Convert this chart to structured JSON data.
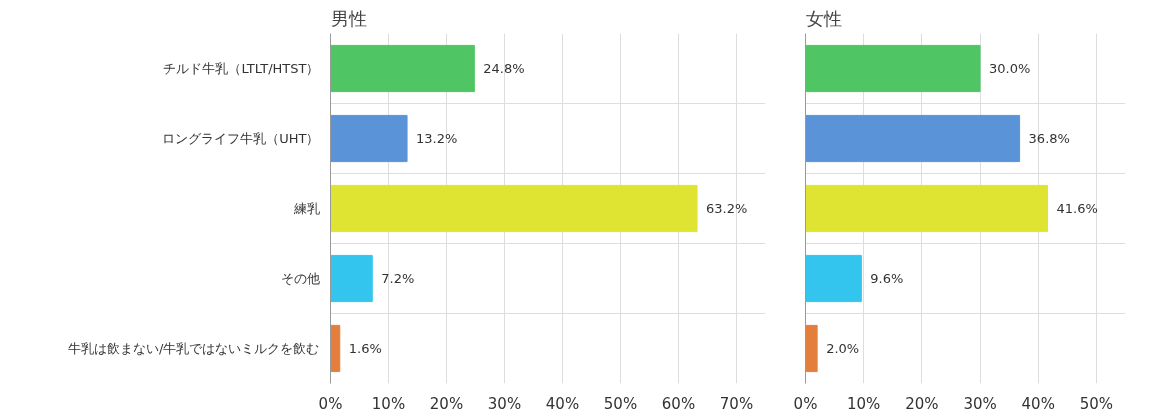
{
  "chart_data": [
    {
      "type": "bar",
      "orientation": "horizontal",
      "title": "男性",
      "categories": [
        "チルド牛乳（LTLT/HTST）",
        "ロングライフ牛乳（UHT）",
        "練乳",
        "その他",
        "牛乳は飲まない/牛乳ではないミルクを飲む"
      ],
      "values": [
        24.8,
        13.2,
        63.2,
        7.2,
        1.6
      ],
      "colors": [
        "#4fc564",
        "#5b93d9",
        "#dfe433",
        "#33c5ee",
        "#e47e3c"
      ],
      "value_labels": [
        "24.8%",
        "13.2%",
        "63.2%",
        "7.2%",
        "1.6%"
      ],
      "xlim": [
        0,
        75
      ],
      "xticks": [
        {
          "value": 0,
          "label": "0%"
        },
        {
          "value": 10,
          "label": "10%"
        },
        {
          "value": 20,
          "label": "20%"
        },
        {
          "value": 30,
          "label": "30%"
        },
        {
          "value": 40,
          "label": "40%"
        },
        {
          "value": 50,
          "label": "50%"
        },
        {
          "value": 60,
          "label": "60%"
        },
        {
          "value": 70,
          "label": "70%"
        }
      ],
      "grid": true
    },
    {
      "type": "bar",
      "orientation": "horizontal",
      "title": "女性",
      "categories": [
        null,
        null,
        null,
        null,
        null
      ],
      "values": [
        30.0,
        36.8,
        41.6,
        9.6,
        2.0
      ],
      "colors": [
        "#4fc564",
        "#5b93d9",
        "#dfe433",
        "#33c5ee",
        "#e47e3c"
      ],
      "value_labels": [
        "30.0%",
        "36.8%",
        "41.6%",
        "9.6%",
        "2.0%"
      ],
      "xlim": [
        0,
        55
      ],
      "xticks": [
        {
          "value": 0,
          "label": "0%"
        },
        {
          "value": 10,
          "label": "10%"
        },
        {
          "value": 20,
          "label": "20%"
        },
        {
          "value": 30,
          "label": "30%"
        },
        {
          "value": 40,
          "label": "40%"
        },
        {
          "value": 50,
          "label": "50%"
        }
      ],
      "grid": true
    }
  ]
}
